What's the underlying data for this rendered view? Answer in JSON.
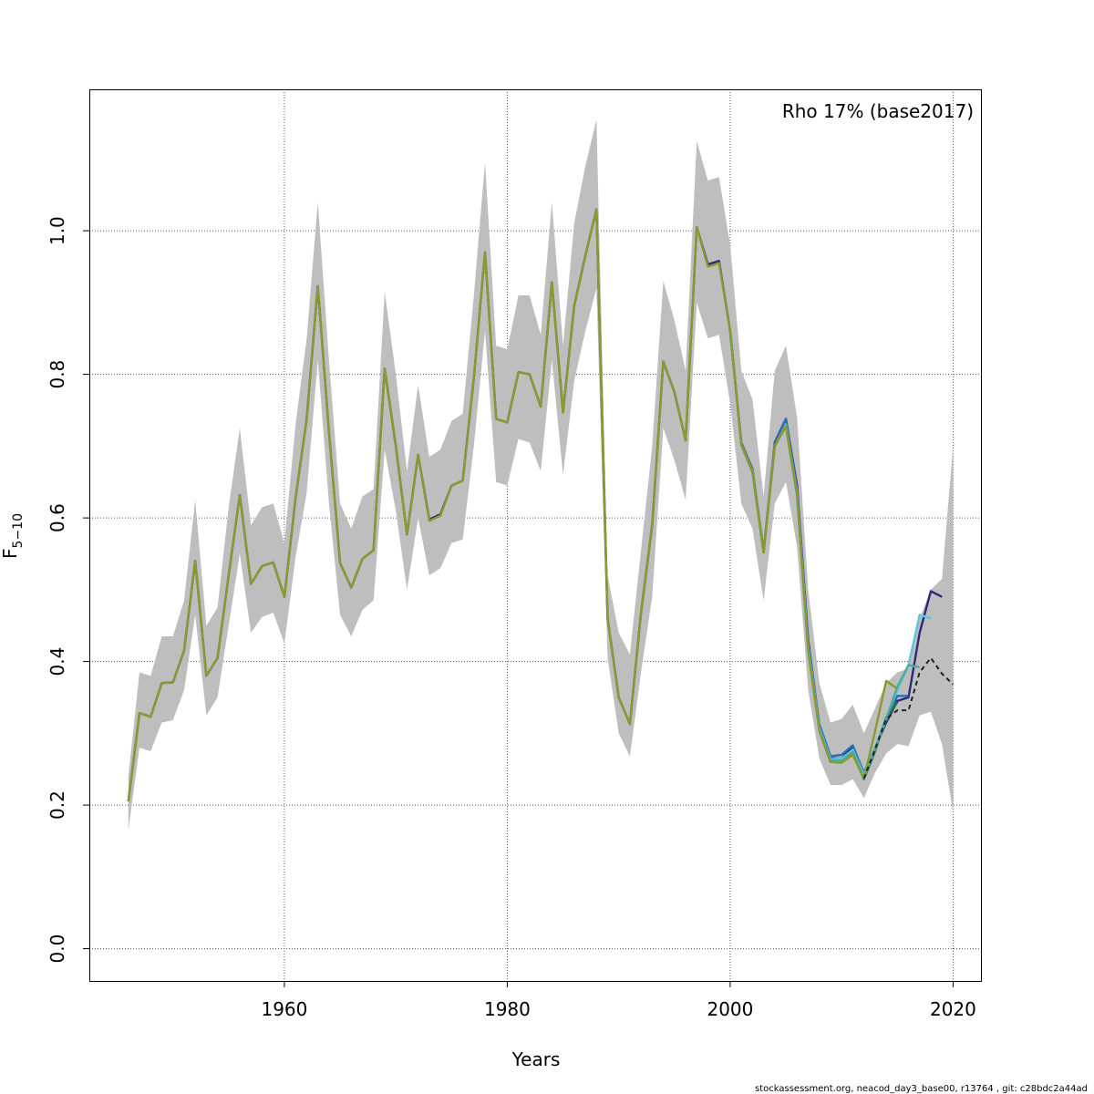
{
  "chart_data": {
    "type": "line",
    "title": "",
    "xlabel": "Years",
    "ylabel_main": "F",
    "ylabel_sub": "5−10",
    "annotation": "Rho 17% (base2017)",
    "footer": "stockassessment.org, neacod_day3_base00, r13764 , git: c28bdc2a44ad",
    "xlim": [
      1942.5,
      2022.5
    ],
    "ylim": [
      -0.045,
      1.197
    ],
    "x_ticks": [
      1960,
      1980,
      2000,
      2020
    ],
    "x_tick_labels": [
      "1960",
      "1980",
      "2000",
      "2020"
    ],
    "y_ticks": [
      0.0,
      0.2,
      0.4,
      0.6,
      0.8,
      1.0
    ],
    "y_tick_labels": [
      "0.0",
      "0.2",
      "0.4",
      "0.6",
      "0.8",
      "1.0"
    ],
    "grid": true,
    "band_color": "#bebebe",
    "confidence_band": {
      "x": [
        1946,
        1947,
        1948,
        1949,
        1950,
        1951,
        1952,
        1953,
        1954,
        1955,
        1956,
        1957,
        1958,
        1959,
        1960,
        1961,
        1962,
        1963,
        1964,
        1965,
        1966,
        1967,
        1968,
        1969,
        1970,
        1971,
        1972,
        1973,
        1974,
        1975,
        1976,
        1977,
        1978,
        1979,
        1980,
        1981,
        1982,
        1983,
        1984,
        1985,
        1986,
        1987,
        1988,
        1989,
        1990,
        1991,
        1992,
        1993,
        1994,
        1995,
        1996,
        1997,
        1998,
        1999,
        2000,
        2001,
        2002,
        2003,
        2004,
        2005,
        2006,
        2007,
        2008,
        2009,
        2010,
        2011,
        2012,
        2013,
        2014,
        2015,
        2016,
        2017,
        2018,
        2019,
        2020
      ],
      "upper": [
        0.24,
        0.385,
        0.38,
        0.435,
        0.435,
        0.485,
        0.625,
        0.45,
        0.475,
        0.615,
        0.725,
        0.59,
        0.615,
        0.62,
        0.565,
        0.73,
        0.85,
        1.04,
        0.82,
        0.62,
        0.585,
        0.63,
        0.64,
        0.915,
        0.8,
        0.665,
        0.785,
        0.685,
        0.695,
        0.735,
        0.745,
        0.91,
        1.095,
        0.84,
        0.835,
        0.91,
        0.91,
        0.855,
        1.04,
        0.84,
        1.01,
        1.09,
        1.155,
        0.52,
        0.44,
        0.41,
        0.555,
        0.7,
        0.93,
        0.875,
        0.805,
        1.125,
        1.07,
        1.075,
        0.98,
        0.805,
        0.765,
        0.63,
        0.805,
        0.84,
        0.74,
        0.5,
        0.37,
        0.315,
        0.32,
        0.34,
        0.3,
        0.335,
        0.37,
        0.385,
        0.39,
        0.46,
        0.5,
        0.515,
        0.7
      ],
      "lower": [
        0.165,
        0.28,
        0.275,
        0.315,
        0.318,
        0.36,
        0.465,
        0.325,
        0.35,
        0.45,
        0.55,
        0.44,
        0.462,
        0.468,
        0.425,
        0.545,
        0.635,
        0.82,
        0.62,
        0.465,
        0.435,
        0.472,
        0.485,
        0.695,
        0.61,
        0.5,
        0.6,
        0.52,
        0.53,
        0.565,
        0.57,
        0.7,
        0.86,
        0.65,
        0.645,
        0.71,
        0.705,
        0.665,
        0.82,
        0.66,
        0.79,
        0.86,
        0.92,
        0.405,
        0.3,
        0.268,
        0.385,
        0.49,
        0.725,
        0.68,
        0.625,
        0.9,
        0.85,
        0.855,
        0.76,
        0.62,
        0.585,
        0.485,
        0.62,
        0.65,
        0.56,
        0.36,
        0.265,
        0.228,
        0.228,
        0.236,
        0.21,
        0.245,
        0.272,
        0.285,
        0.282,
        0.325,
        0.33,
        0.285,
        0.19
      ]
    },
    "series": [
      {
        "color": "#2d2a7a",
        "x": [
          1946,
          1947,
          1948,
          1949,
          1950,
          1951,
          1952,
          1953,
          1954,
          1955,
          1956,
          1957,
          1958,
          1959,
          1960,
          1961,
          1962,
          1963,
          1964,
          1965,
          1966,
          1967,
          1968,
          1969,
          1970,
          1971,
          1972,
          1973,
          1974,
          1975,
          1976,
          1977,
          1978,
          1979,
          1980,
          1981,
          1982,
          1983,
          1984,
          1985,
          1986,
          1987,
          1988,
          1989,
          1990,
          1991,
          1992,
          1993,
          1994,
          1995,
          1996,
          1997,
          1998,
          1999,
          2000,
          2001,
          2002,
          2003,
          2004,
          2005,
          2006,
          2007,
          2008,
          2009,
          2010,
          2011,
          2012,
          2013,
          2014,
          2015,
          2016,
          2017,
          2018,
          2019
        ],
        "values": [
          0.205,
          0.328,
          0.323,
          0.37,
          0.371,
          0.415,
          0.54,
          0.38,
          0.405,
          0.52,
          0.632,
          0.508,
          0.533,
          0.538,
          0.49,
          0.627,
          0.738,
          0.923,
          0.72,
          0.537,
          0.503,
          0.543,
          0.555,
          0.808,
          0.7,
          0.577,
          0.688,
          0.598,
          0.605,
          0.645,
          0.652,
          0.795,
          0.97,
          0.738,
          0.733,
          0.803,
          0.8,
          0.755,
          0.928,
          0.747,
          0.895,
          0.965,
          1.03,
          0.46,
          0.35,
          0.313,
          0.468,
          0.59,
          0.818,
          0.775,
          0.708,
          1.005,
          0.953,
          0.958,
          0.86,
          0.705,
          0.668,
          0.553,
          0.705,
          0.738,
          0.645,
          0.43,
          0.31,
          0.265,
          0.265,
          0.282,
          0.24,
          0.28,
          0.315,
          0.345,
          0.35,
          0.44,
          0.498,
          0.49
        ]
      },
      {
        "color": "#2a6fb5",
        "x": [
          2000,
          2001,
          2002,
          2003,
          2004,
          2005,
          2006,
          2007,
          2008,
          2009,
          2010,
          2011,
          2012,
          2013,
          2014,
          2015,
          2016
        ],
        "values": [
          0.86,
          0.705,
          0.668,
          0.553,
          0.703,
          0.738,
          0.64,
          0.425,
          0.313,
          0.268,
          0.27,
          0.283,
          0.245,
          0.278,
          0.318,
          0.352,
          0.352
        ]
      },
      {
        "color": "#5bc8dc",
        "x": [
          2000,
          2001,
          2002,
          2003,
          2004,
          2005,
          2006,
          2007,
          2008,
          2009,
          2010,
          2011,
          2012,
          2013,
          2014,
          2015,
          2016,
          2017,
          2018
        ],
        "values": [
          0.86,
          0.703,
          0.665,
          0.552,
          0.7,
          0.73,
          0.635,
          0.42,
          0.308,
          0.264,
          0.265,
          0.277,
          0.242,
          0.28,
          0.322,
          0.36,
          0.395,
          0.465,
          0.46
        ]
      },
      {
        "color": "#1e7a3c",
        "x": [
          2000,
          2001,
          2002,
          2003,
          2004,
          2005,
          2006,
          2007,
          2008,
          2009,
          2010,
          2011,
          2012,
          2013,
          2014,
          2015
        ],
        "values": [
          0.86,
          0.702,
          0.664,
          0.552,
          0.7,
          0.728,
          0.632,
          0.415,
          0.304,
          0.26,
          0.26,
          0.272,
          0.236,
          0.275,
          0.322,
          0.343
        ]
      },
      {
        "color": "#4fa8a0",
        "x": [
          2000,
          2001,
          2002,
          2003,
          2004,
          2005,
          2006,
          2007,
          2008,
          2009,
          2010,
          2011,
          2012,
          2013,
          2014,
          2015,
          2016,
          2017
        ],
        "values": [
          0.86,
          0.703,
          0.665,
          0.552,
          0.7,
          0.728,
          0.633,
          0.417,
          0.306,
          0.262,
          0.262,
          0.274,
          0.238,
          0.278,
          0.32,
          0.365,
          0.395,
          0.392
        ]
      },
      {
        "color": "#8a9a2e",
        "x": [
          1946,
          1947,
          1948,
          1949,
          1950,
          1951,
          1952,
          1953,
          1954,
          1955,
          1956,
          1957,
          1958,
          1959,
          1960,
          1961,
          1962,
          1963,
          1964,
          1965,
          1966,
          1967,
          1968,
          1969,
          1970,
          1971,
          1972,
          1973,
          1974,
          1975,
          1976,
          1977,
          1978,
          1979,
          1980,
          1981,
          1982,
          1983,
          1984,
          1985,
          1986,
          1987,
          1988,
          1989,
          1990,
          1991,
          1992,
          1993,
          1994,
          1995,
          1996,
          1997,
          1998,
          1999,
          2000,
          2001,
          2002,
          2003,
          2004,
          2005,
          2006,
          2007,
          2008,
          2009,
          2010,
          2011,
          2012,
          2013,
          2014,
          2015
        ],
        "values": [
          0.205,
          0.328,
          0.323,
          0.37,
          0.371,
          0.415,
          0.54,
          0.38,
          0.405,
          0.52,
          0.632,
          0.508,
          0.533,
          0.538,
          0.49,
          0.627,
          0.738,
          0.923,
          0.72,
          0.537,
          0.503,
          0.543,
          0.555,
          0.808,
          0.7,
          0.577,
          0.688,
          0.596,
          0.603,
          0.645,
          0.652,
          0.795,
          0.97,
          0.738,
          0.733,
          0.803,
          0.8,
          0.755,
          0.928,
          0.747,
          0.895,
          0.965,
          1.03,
          0.46,
          0.35,
          0.313,
          0.468,
          0.59,
          0.818,
          0.775,
          0.708,
          1.005,
          0.95,
          0.955,
          0.86,
          0.703,
          0.665,
          0.552,
          0.7,
          0.728,
          0.632,
          0.415,
          0.303,
          0.26,
          0.259,
          0.27,
          0.237,
          0.303,
          0.373,
          0.362
        ]
      },
      {
        "color": "#222222",
        "dashed": true,
        "x": [
          2012,
          2013,
          2014,
          2015,
          2016,
          2017,
          2018,
          2019,
          2020
        ],
        "values": [
          0.237,
          0.278,
          0.32,
          0.332,
          0.332,
          0.385,
          0.405,
          0.383,
          0.368
        ]
      }
    ]
  }
}
